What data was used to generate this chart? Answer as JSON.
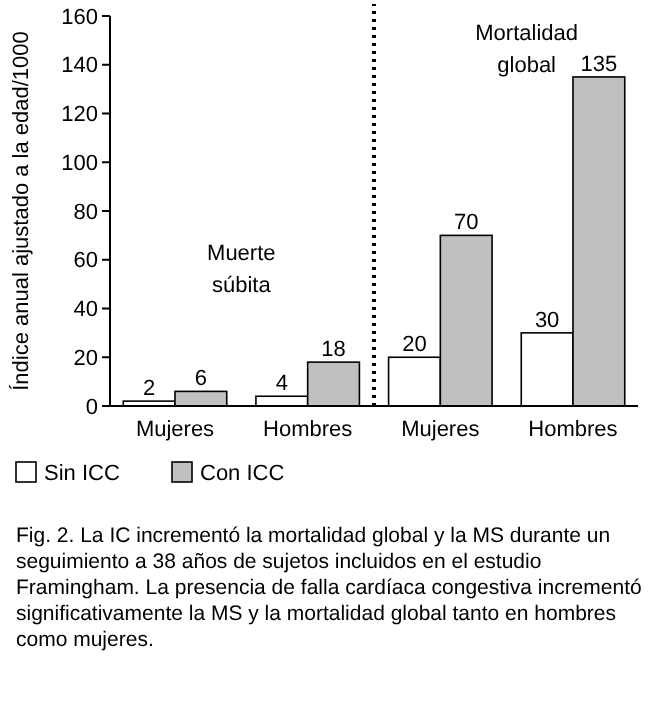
{
  "chart_data": {
    "type": "bar",
    "ylabel": "Índice anual ajustado a la edad/1000",
    "categories": [
      "Mujeres",
      "Hombres",
      "Mujeres",
      "Hombres"
    ],
    "series": [
      {
        "name": "Sin ICC",
        "color": "#ffffff",
        "values": [
          2,
          4,
          20,
          30
        ]
      },
      {
        "name": "Con ICC",
        "color": "#c0c0c0",
        "values": [
          6,
          18,
          70,
          135
        ]
      }
    ],
    "ylim": [
      0,
      160
    ],
    "yticks": [
      0,
      20,
      40,
      60,
      80,
      100,
      120,
      140,
      160
    ],
    "grid": false,
    "data_labels": true,
    "legend": "bottom left",
    "annotations": [
      "Muerte súbita",
      "Mortalidad global",
      "Fig. 2. La IC incrementó la mortalidad global y la MS durante un seguimiento a 38 años de sujetos incluidos en el estudio Framingham. La presencia de falla cardíaca congestiva incrementó significativamente la MS y la mortalidad global tanto en hombres como mujeres."
    ]
  }
}
